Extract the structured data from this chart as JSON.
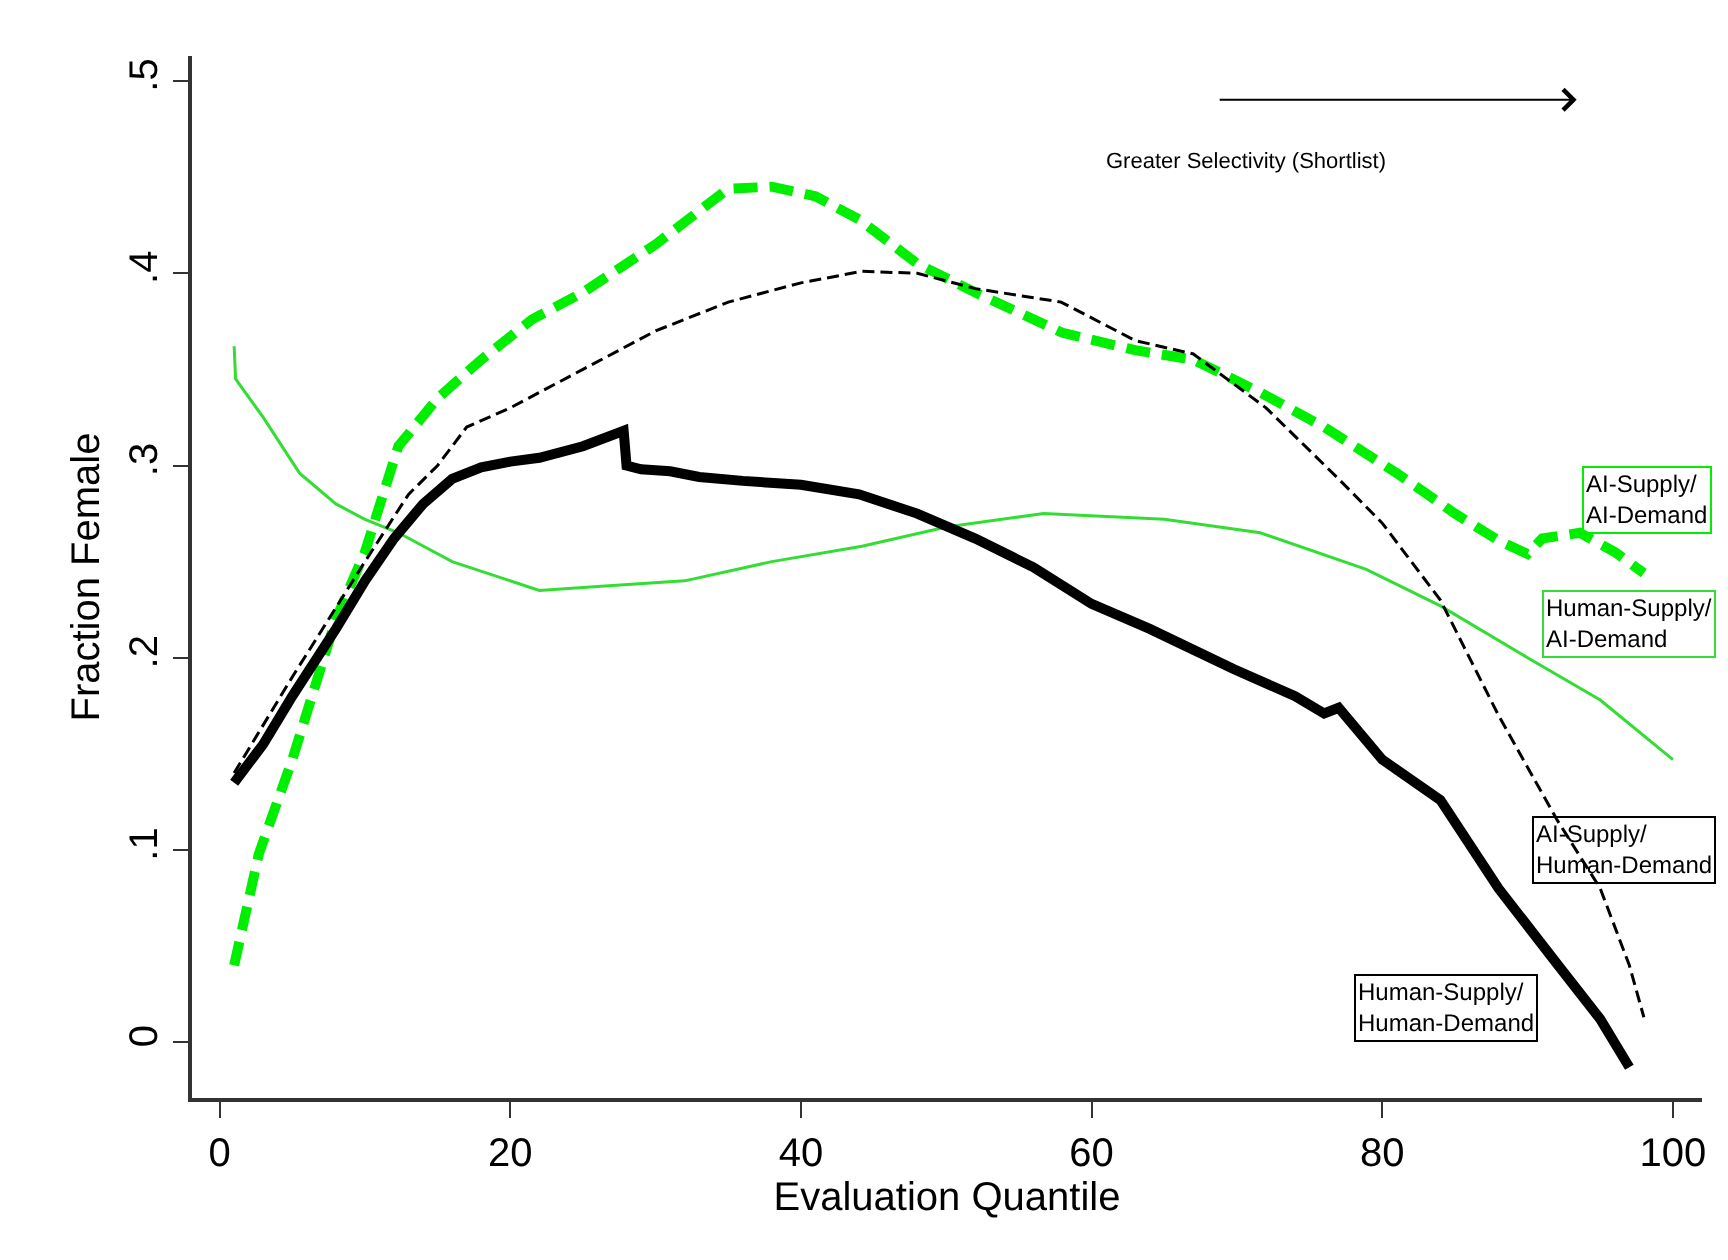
{
  "chart_data": {
    "type": "line",
    "xlabel": "Evaluation Quantile",
    "ylabel": "Fraction Female",
    "xlim": [
      -1.9,
      102
    ],
    "xticks": [
      0,
      20,
      40,
      60,
      80,
      100
    ],
    "ylim": [
      -0.029,
      0.513
    ],
    "yticks": [
      {
        "value": 0,
        "label": "0"
      },
      {
        "value": 0.1,
        "label": ".1"
      },
      {
        "value": 0.2,
        "label": ".2"
      },
      {
        "value": 0.3,
        "label": ".3"
      },
      {
        "value": 0.4,
        "label": ".4"
      },
      {
        "value": 0.5,
        "label": ".5"
      }
    ],
    "grid": false,
    "legend": false,
    "marker": "none",
    "annotations": [
      "Greater Selectivity (Shortlist)"
    ],
    "series": [
      {
        "name": "AI-Supply/\nAI-Demand",
        "color": "#00ee00",
        "line_style": "dashed",
        "x": [
          1,
          2.7,
          5,
          8,
          10,
          12.3,
          15,
          18,
          21.5,
          25,
          30,
          35,
          38,
          41,
          44,
          48,
          52,
          58,
          63,
          67,
          71.6,
          76,
          81,
          85,
          88,
          90,
          91,
          93.6,
          96,
          98
        ],
        "values": [
          0.04,
          0.098,
          0.147,
          0.22,
          0.255,
          0.31,
          0.335,
          0.355,
          0.376,
          0.39,
          0.415,
          0.444,
          0.445,
          0.44,
          0.428,
          0.405,
          0.39,
          0.369,
          0.36,
          0.355,
          0.338,
          0.32,
          0.296,
          0.275,
          0.261,
          0.254,
          0.262,
          0.265,
          0.255,
          0.244
        ]
      },
      {
        "name": "Human-Supply/\nAI-Demand",
        "color": "#33dd33",
        "line_style": "solid",
        "x": [
          1,
          1.1,
          3,
          5.5,
          8,
          10,
          12.3,
          16,
          22,
          26,
          32,
          38,
          44.2,
          50,
          56.7,
          65,
          71.6,
          78.9,
          84,
          90,
          95,
          100
        ],
        "values": [
          0.362,
          0.345,
          0.325,
          0.296,
          0.28,
          0.272,
          0.265,
          0.25,
          0.235,
          0.237,
          0.24,
          0.25,
          0.258,
          0.268,
          0.275,
          0.272,
          0.265,
          0.246,
          0.227,
          0.2,
          0.178,
          0.147
        ]
      },
      {
        "name": "AI-Supply/\nHuman-Demand",
        "color": "#000000",
        "line_style": "dashed",
        "x": [
          1,
          5,
          10,
          13,
          15,
          17,
          20,
          25,
          30,
          35,
          40,
          44.2,
          48,
          52,
          57.9,
          63,
          67,
          72,
          77,
          80,
          84,
          88,
          92,
          95,
          97,
          98
        ],
        "values": [
          0.14,
          0.19,
          0.25,
          0.285,
          0.3,
          0.32,
          0.33,
          0.35,
          0.37,
          0.385,
          0.395,
          0.401,
          0.4,
          0.392,
          0.385,
          0.365,
          0.358,
          0.33,
          0.293,
          0.27,
          0.23,
          0.17,
          0.116,
          0.08,
          0.04,
          0.013
        ]
      },
      {
        "name": "Human-Supply/\nHuman-Demand",
        "color": "#000000",
        "line_style": "solid",
        "x": [
          1,
          3,
          5,
          8,
          10,
          12,
          14,
          16,
          18,
          20,
          22,
          25,
          27.8,
          28,
          29,
          31,
          33,
          36,
          40,
          44,
          48,
          52,
          56,
          60,
          64,
          69.8,
          74,
          76,
          77,
          80,
          84,
          88,
          92,
          95,
          97
        ],
        "values": [
          0.135,
          0.155,
          0.18,
          0.215,
          0.24,
          0.262,
          0.28,
          0.293,
          0.299,
          0.302,
          0.304,
          0.31,
          0.318,
          0.3,
          0.298,
          0.297,
          0.294,
          0.292,
          0.29,
          0.285,
          0.275,
          0.262,
          0.247,
          0.228,
          0.215,
          0.194,
          0.18,
          0.171,
          0.174,
          0.147,
          0.126,
          0.08,
          0.041,
          0.012,
          -0.013
        ]
      }
    ]
  }
}
